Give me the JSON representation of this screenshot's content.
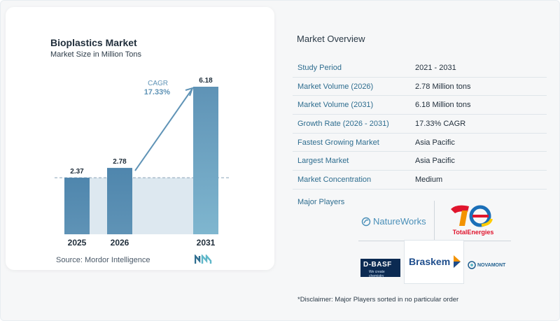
{
  "chart_data": {
    "type": "bar",
    "title": "Bioplastics Market",
    "subtitle": "Market Size in Million Tons",
    "categories": [
      "2025",
      "2026",
      "2031"
    ],
    "values": [
      2.37,
      2.78,
      6.18
    ],
    "value_labels": [
      "2.37",
      "2.78",
      "6.18"
    ],
    "ylim": [
      0,
      6.18
    ],
    "grid": false,
    "annotation": {
      "label": "CAGR",
      "value": "17.33%"
    },
    "bar_color": "#5f93b6",
    "bar_color_last": "#7fb6cf",
    "shade_color": "#dde8f0"
  },
  "source": {
    "label": "Source:",
    "name": "Mordor Intelligence"
  },
  "overview": {
    "title": "Market Overview",
    "rows": [
      {
        "label": "Study Period",
        "value": "2021 - 2031"
      },
      {
        "label": "Market Volume (2026)",
        "value": "2.78 Million tons"
      },
      {
        "label": "Market Volume (2031)",
        "value": "6.18 Million tons"
      },
      {
        "label": "Growth Rate (2026 - 2031)",
        "value": "17.33% CAGR"
      },
      {
        "label": "Fastest Growing Market",
        "value": "Asia Pacific"
      },
      {
        "label": "Largest Market",
        "value": "Asia Pacific"
      },
      {
        "label": "Market Concentration",
        "value": "Medium"
      }
    ]
  },
  "players": {
    "title": "Major Players",
    "logos": {
      "natureworks": "NatureWorks",
      "totalenergies": "TotalEnergies",
      "braskem": "Braskem",
      "basf": "D-BASF",
      "basf_tagline": "We create chemistry",
      "novamont": "NOVAMONT"
    }
  },
  "disclaimer": "*Disclaimer: Major Players sorted in no particular order"
}
